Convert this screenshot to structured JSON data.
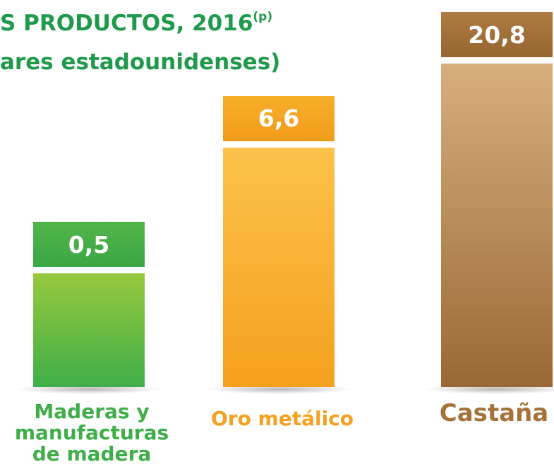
{
  "chart_data": {
    "type": "bar",
    "title": "S PRODUCTOS, 2016",
    "title_superscript": "(p)",
    "subtitle": "ares estadounidenses)",
    "categories": [
      "Maderas y manufacturas de madera",
      "Oro metálico",
      "Castaña"
    ],
    "values": [
      0.5,
      6.6,
      20.8
    ],
    "value_labels": [
      "0,5",
      "6,6",
      "20,8"
    ],
    "colors": [
      "#3fae49",
      "#f5a01e",
      "#a5723a"
    ]
  }
}
